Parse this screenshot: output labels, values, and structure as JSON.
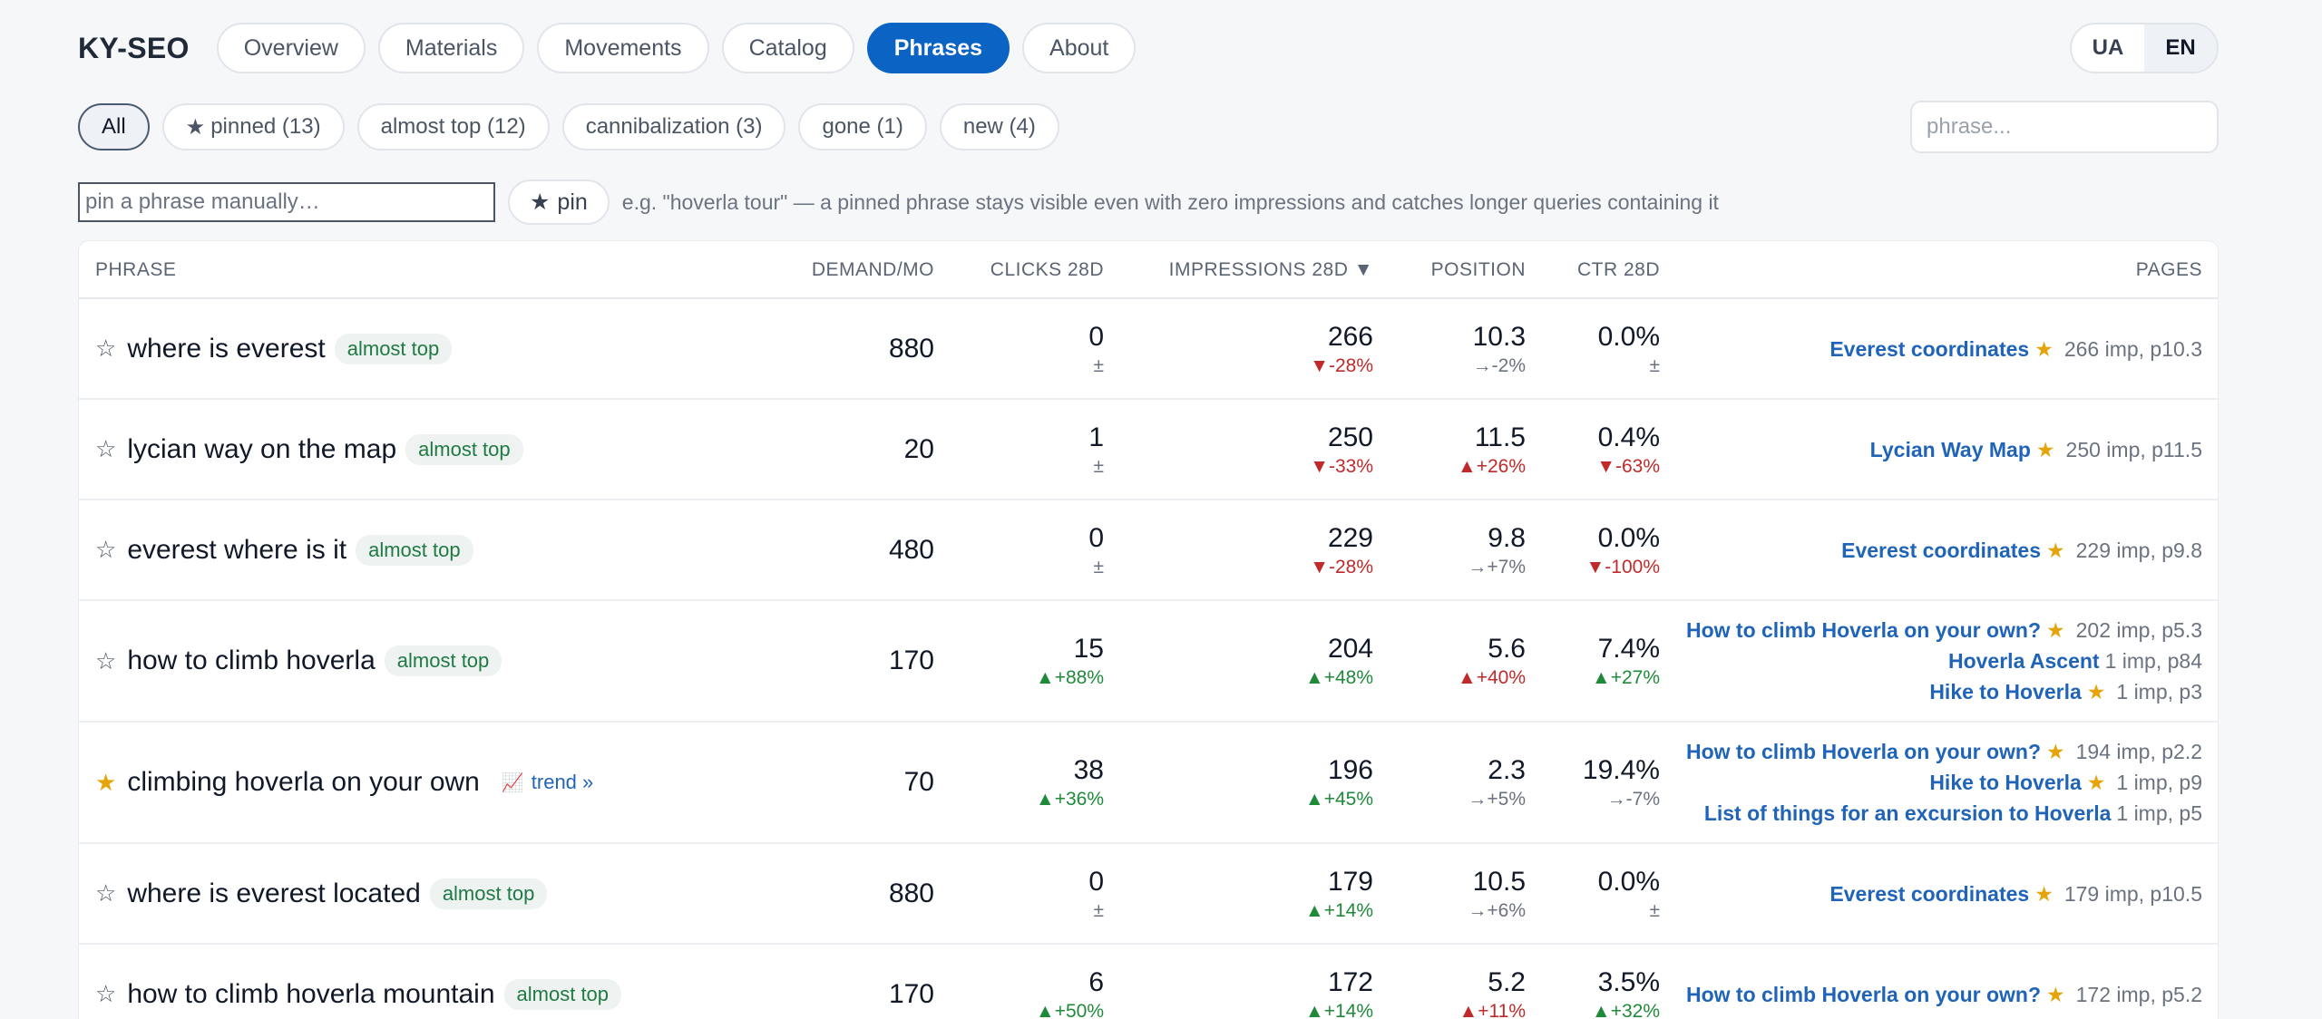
{
  "brand": "KY-SEO",
  "nav": [
    "Overview",
    "Materials",
    "Movements",
    "Catalog",
    "Phrases",
    "About"
  ],
  "nav_active": "Phrases",
  "lang": [
    "UA",
    "EN"
  ],
  "lang_active": "EN",
  "filters": [
    {
      "label": "All",
      "active": true,
      "star": false
    },
    {
      "label": "pinned (13)",
      "active": false,
      "star": true
    },
    {
      "label": "almost top (12)",
      "active": false,
      "star": false
    },
    {
      "label": "cannibalization (3)",
      "active": false,
      "star": false
    },
    {
      "label": "gone (1)",
      "active": false,
      "star": false
    },
    {
      "label": "new (4)",
      "active": false,
      "star": false
    }
  ],
  "search_placeholder": "phrase...",
  "pin": {
    "placeholder": "pin a phrase manually…",
    "button": "pin",
    "hint": "e.g. \"hoverla tour\" — a pinned phrase stays visible even with zero impressions and catches longer queries containing it"
  },
  "columns": {
    "phrase": "PHRASE",
    "demand": "DEMAND/MO",
    "clicks": "CLICKS 28D",
    "impressions": "IMPRESSIONS 28D ▼",
    "position": "POSITION",
    "ctr": "CTR 28D",
    "pages": "PAGES"
  },
  "rows": [
    {
      "pinned": false,
      "phrase": "where is everest",
      "badge": "almost top",
      "trend": null,
      "demand": "880",
      "clicks": "0",
      "clicks_d": "±",
      "clicks_t": "flat",
      "impr": "266",
      "impr_d": "▼-28%",
      "impr_t": "down",
      "pos": "10.3",
      "pos_d": "→-2%",
      "pos_t": "flat",
      "ctr": "0.0%",
      "ctr_d": "±",
      "ctr_t": "flat",
      "pages": [
        {
          "title": "Everest coordinates",
          "star": true,
          "meta": "266 imp, p10.3"
        }
      ]
    },
    {
      "pinned": false,
      "phrase": "lycian way on the map",
      "badge": "almost top",
      "trend": null,
      "demand": "20",
      "clicks": "1",
      "clicks_d": "±",
      "clicks_t": "flat",
      "impr": "250",
      "impr_d": "▼-33%",
      "impr_t": "down",
      "pos": "11.5",
      "pos_d": "▲+26%",
      "pos_t": "down",
      "ctr": "0.4%",
      "ctr_d": "▼-63%",
      "ctr_t": "down",
      "pages": [
        {
          "title": "Lycian Way Map",
          "star": true,
          "meta": "250 imp, p11.5"
        }
      ]
    },
    {
      "pinned": false,
      "phrase": "everest where is it",
      "badge": "almost top",
      "trend": null,
      "demand": "480",
      "clicks": "0",
      "clicks_d": "±",
      "clicks_t": "flat",
      "impr": "229",
      "impr_d": "▼-28%",
      "impr_t": "down",
      "pos": "9.8",
      "pos_d": "→+7%",
      "pos_t": "flat",
      "ctr": "0.0%",
      "ctr_d": "▼-100%",
      "ctr_t": "down",
      "pages": [
        {
          "title": "Everest coordinates",
          "star": true,
          "meta": "229 imp, p9.8"
        }
      ]
    },
    {
      "pinned": false,
      "phrase": "how to climb hoverla",
      "badge": "almost top",
      "trend": null,
      "demand": "170",
      "clicks": "15",
      "clicks_d": "▲+88%",
      "clicks_t": "up",
      "impr": "204",
      "impr_d": "▲+48%",
      "impr_t": "up",
      "pos": "5.6",
      "pos_d": "▲+40%",
      "pos_t": "down",
      "ctr": "7.4%",
      "ctr_d": "▲+27%",
      "ctr_t": "up",
      "pages": [
        {
          "title": "How to climb Hoverla on your own?",
          "star": true,
          "meta": "202 imp, p5.3"
        },
        {
          "title": "Hoverla Ascent",
          "star": false,
          "meta": "1 imp, p84"
        },
        {
          "title": "Hike to Hoverla",
          "star": true,
          "meta": "1 imp, p3"
        }
      ]
    },
    {
      "pinned": true,
      "phrase": "climbing hoverla on your own",
      "badge": null,
      "trend": "trend »",
      "demand": "70",
      "clicks": "38",
      "clicks_d": "▲+36%",
      "clicks_t": "up",
      "impr": "196",
      "impr_d": "▲+45%",
      "impr_t": "up",
      "pos": "2.3",
      "pos_d": "→+5%",
      "pos_t": "flat",
      "ctr": "19.4%",
      "ctr_d": "→-7%",
      "ctr_t": "flat",
      "pages": [
        {
          "title": "How to climb Hoverla on your own?",
          "star": true,
          "meta": "194 imp, p2.2"
        },
        {
          "title": "Hike to Hoverla",
          "star": true,
          "meta": "1 imp, p9"
        },
        {
          "title": "List of things for an excursion to Hoverla",
          "star": false,
          "meta": "1 imp, p5"
        }
      ]
    },
    {
      "pinned": false,
      "phrase": "where is everest located",
      "badge": "almost top",
      "trend": null,
      "demand": "880",
      "clicks": "0",
      "clicks_d": "±",
      "clicks_t": "flat",
      "impr": "179",
      "impr_d": "▲+14%",
      "impr_t": "up",
      "pos": "10.5",
      "pos_d": "→+6%",
      "pos_t": "flat",
      "ctr": "0.0%",
      "ctr_d": "±",
      "ctr_t": "flat",
      "pages": [
        {
          "title": "Everest coordinates",
          "star": true,
          "meta": "179 imp, p10.5"
        }
      ]
    },
    {
      "pinned": false,
      "phrase": "how to climb hoverla mountain",
      "badge": "almost top",
      "trend": null,
      "demand": "170",
      "clicks": "6",
      "clicks_d": "▲+50%",
      "clicks_t": "up",
      "impr": "172",
      "impr_d": "▲+14%",
      "impr_t": "up",
      "pos": "5.2",
      "pos_d": "▲+11%",
      "pos_t": "down",
      "ctr": "3.5%",
      "ctr_d": "▲+32%",
      "ctr_t": "up",
      "pages": [
        {
          "title": "How to climb Hoverla on your own?",
          "star": true,
          "meta": "172 imp, p5.2"
        }
      ]
    }
  ]
}
